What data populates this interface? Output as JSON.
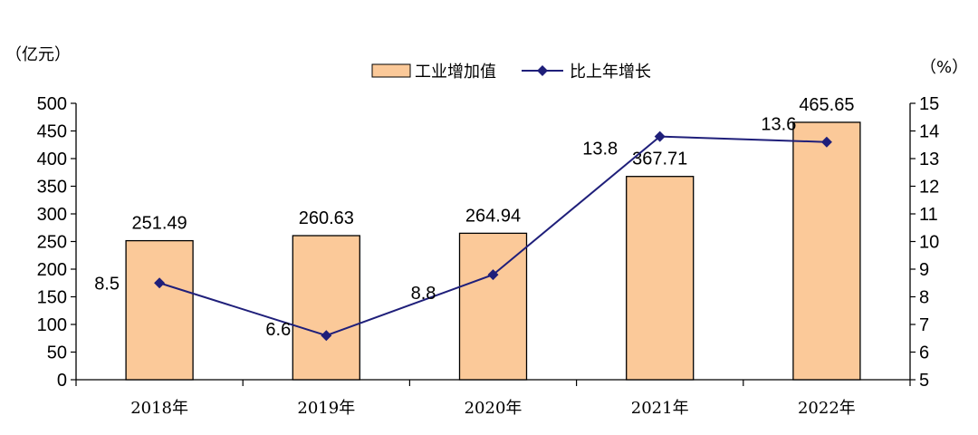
{
  "chart_data": {
    "type": "bar",
    "categories": [
      "2018年",
      "2019年",
      "2020年",
      "2021年",
      "2022年"
    ],
    "series": [
      {
        "name": "工业增加值",
        "type": "bar",
        "axis": "left",
        "values": [
          251.49,
          260.63,
          264.94,
          367.71,
          465.65
        ],
        "labels": [
          "251.49",
          "260.63",
          "264.94",
          "367.71",
          "465.65"
        ],
        "color": "#FBC999"
      },
      {
        "name": "比上年增长",
        "type": "line",
        "axis": "right",
        "values": [
          8.5,
          6.6,
          8.8,
          13.8,
          13.6
        ],
        "labels": [
          "8.5",
          "6.6",
          "8.8",
          "13.8",
          "13.6"
        ],
        "color": "#1F1F7A"
      }
    ],
    "y_left": {
      "unit_label": "（亿元）",
      "range": [
        0,
        500
      ],
      "ticks": [
        "0",
        "50",
        "100",
        "150",
        "200",
        "250",
        "300",
        "350",
        "400",
        "450",
        "500"
      ]
    },
    "y_right": {
      "unit_label": "（%）",
      "range": [
        5,
        15
      ],
      "ticks": [
        "5",
        "6",
        "7",
        "8",
        "9",
        "10",
        "11",
        "12",
        "13",
        "14",
        "15"
      ]
    },
    "grid": false,
    "legend": "top-center"
  }
}
